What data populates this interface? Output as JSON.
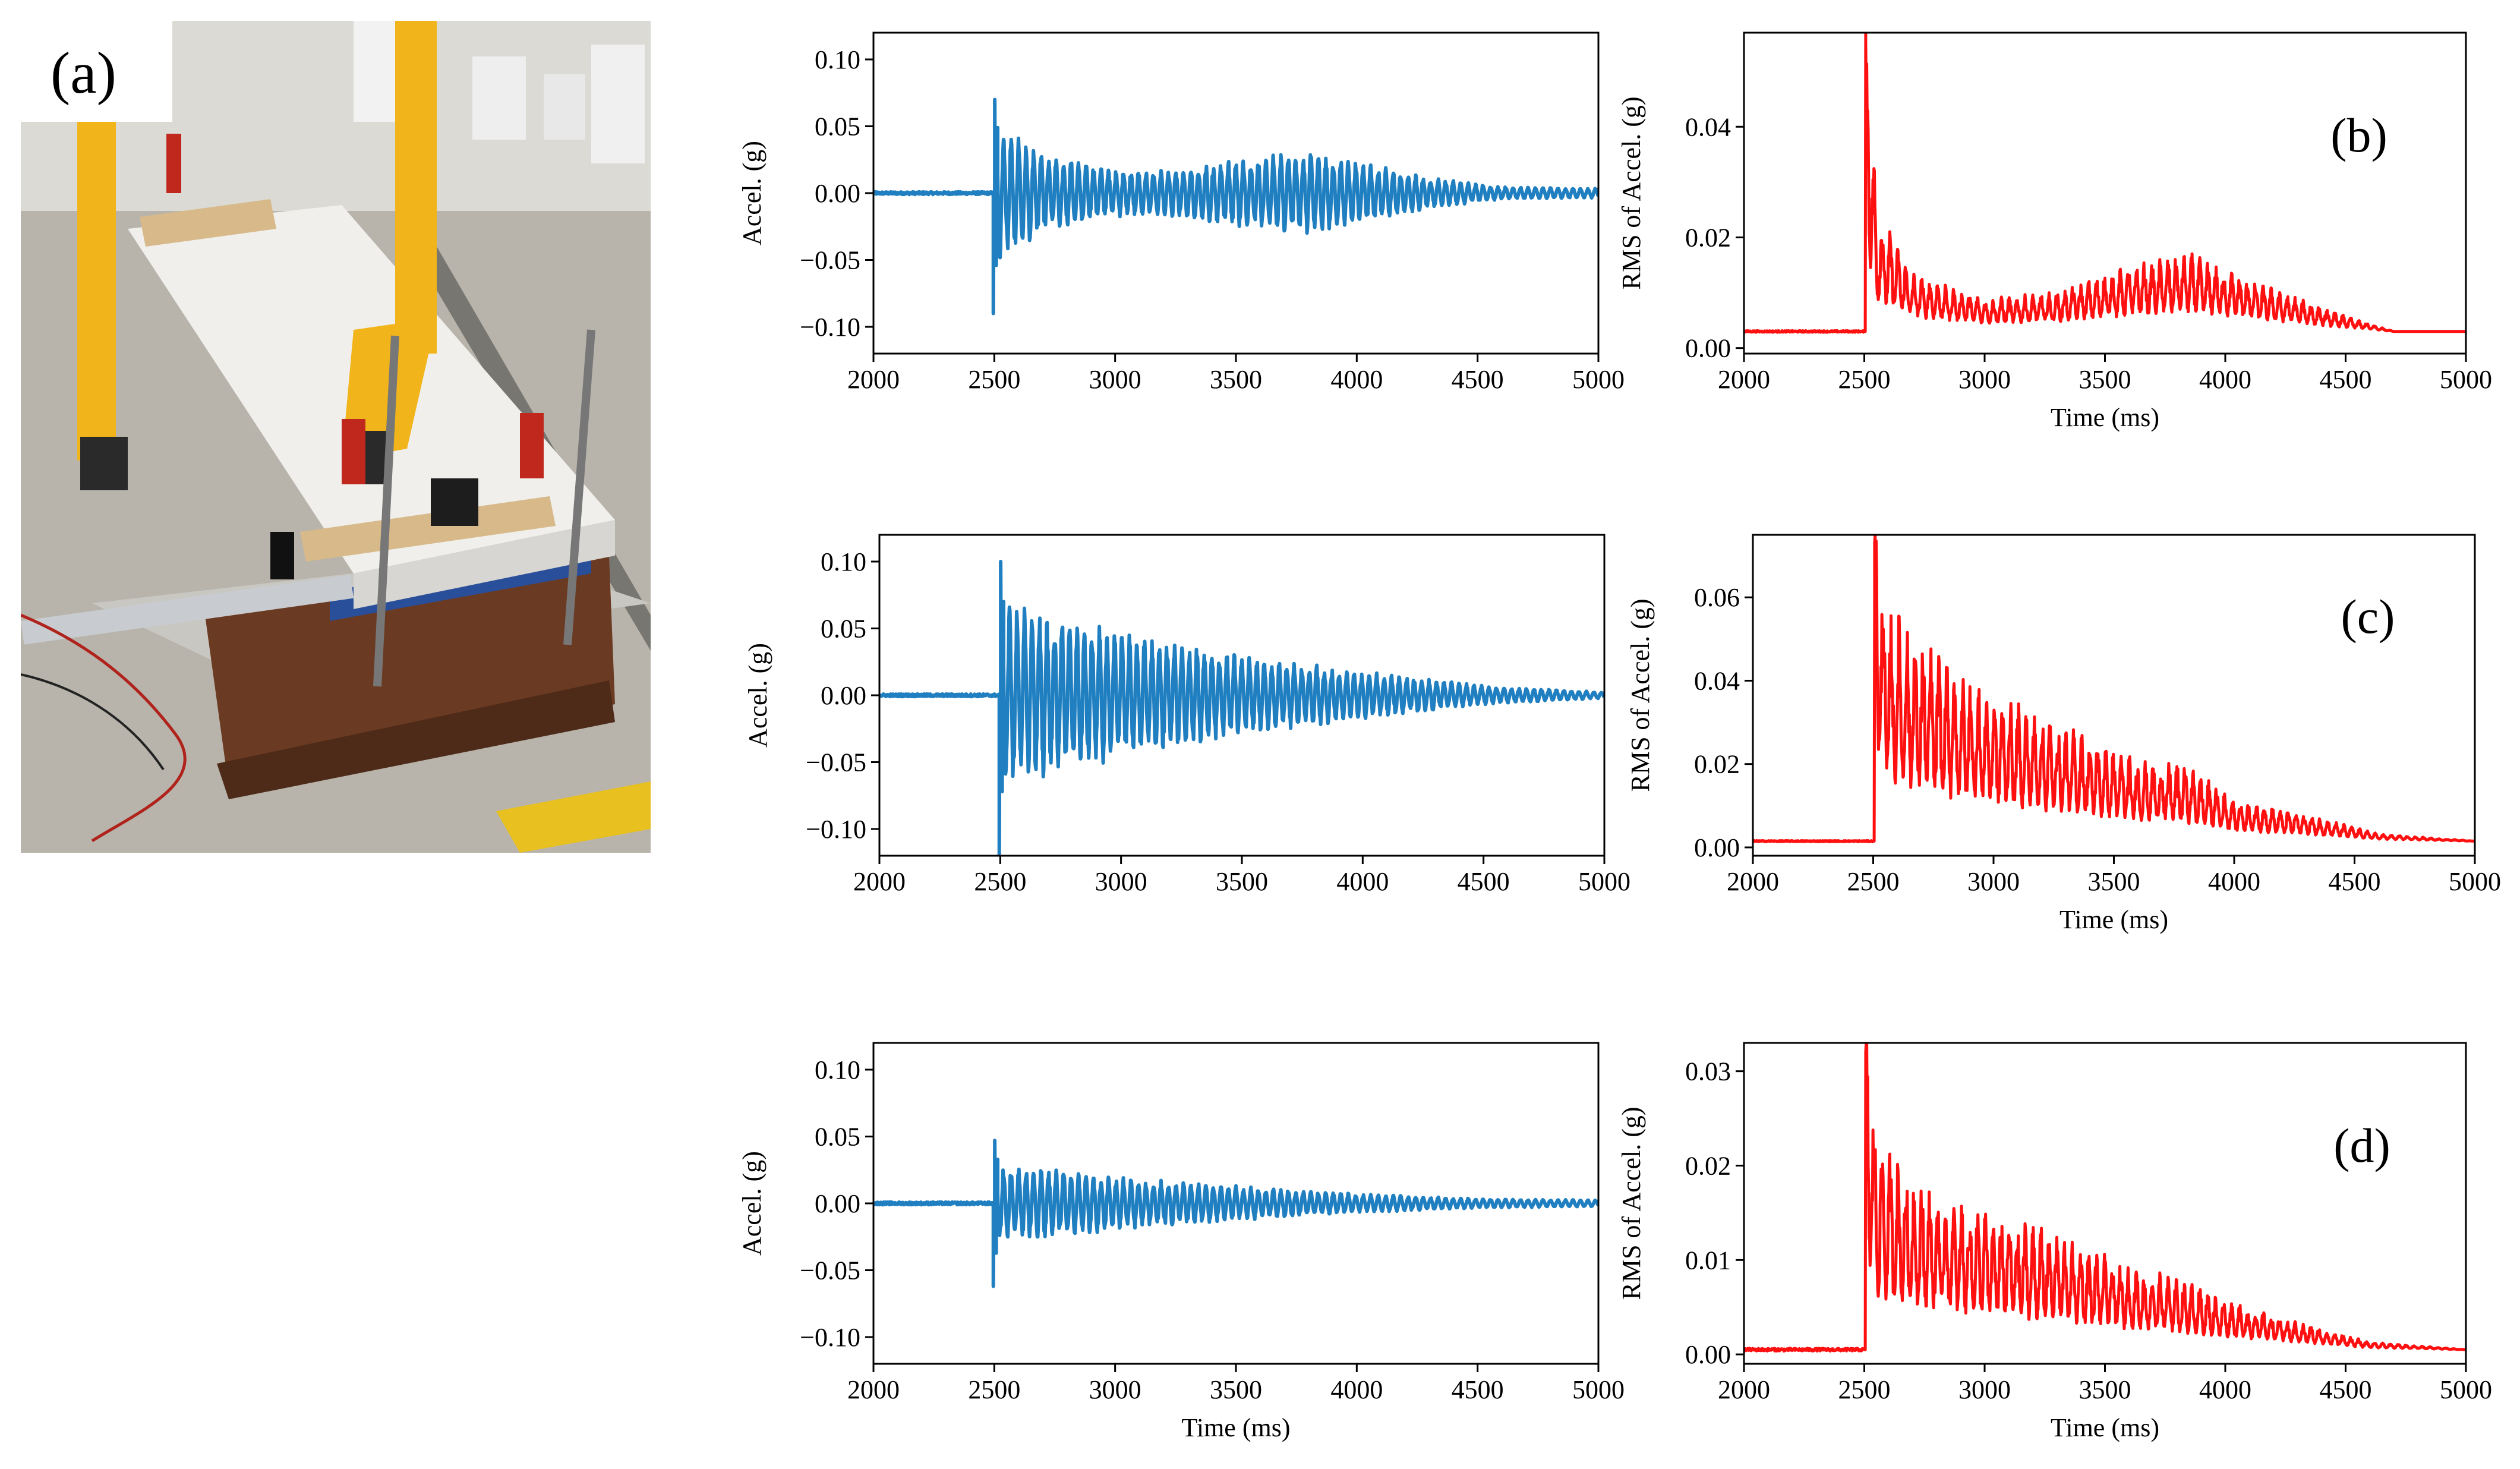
{
  "figure": {
    "panel_a_label": "(a)"
  },
  "colors": {
    "acceleration": "#1f7fc0",
    "rms": "#ff1010"
  },
  "chart_data": [
    {
      "type": "line",
      "panel": "b",
      "label": "(b)",
      "quantity": "acceleration",
      "xlabel": "",
      "ylabel": "Accel. (g)",
      "xlim": [
        2000,
        5000
      ],
      "ylim": [
        -0.12,
        0.12
      ],
      "xticks": [
        2000,
        2500,
        3000,
        3500,
        4000,
        4500,
        5000
      ],
      "yticks": [
        0.1,
        0.05,
        0.0,
        -0.05,
        -0.1
      ],
      "ytick_labels": [
        "0.10",
        "0.05",
        "0.00",
        "−0.05",
        "−0.10"
      ],
      "impact_time": 2500,
      "peak_max": 0.07,
      "peak_min": -0.09,
      "baseline": 0.0,
      "envelope": [
        [
          2510,
          0.045
        ],
        [
          2700,
          0.025
        ],
        [
          3000,
          0.015
        ],
        [
          3200,
          0.014
        ],
        [
          3500,
          0.022
        ],
        [
          3800,
          0.026
        ],
        [
          4000,
          0.02
        ],
        [
          4300,
          0.01
        ],
        [
          4600,
          0.004
        ],
        [
          5000,
          0.003
        ]
      ],
      "grid": false
    },
    {
      "type": "line",
      "panel": "b",
      "label": "(b)",
      "quantity": "rms",
      "xlabel": "Time (ms)",
      "ylabel": "RMS of Accel. (g)",
      "xlim": [
        2000,
        5000
      ],
      "ylim": [
        -0.001,
        0.057
      ],
      "xticks": [
        2000,
        2500,
        3000,
        3500,
        4000,
        4500,
        5000
      ],
      "yticks": [
        0.0,
        0.02,
        0.04
      ],
      "ytick_labels": [
        "0.00",
        "0.02",
        "0.04"
      ],
      "impact_time": 2500,
      "peak": 0.055,
      "baseline": 0.003,
      "envelope": [
        [
          2510,
          0.055
        ],
        [
          2550,
          0.022
        ],
        [
          2700,
          0.012
        ],
        [
          3000,
          0.008
        ],
        [
          3300,
          0.009
        ],
        [
          3600,
          0.013
        ],
        [
          3850,
          0.015
        ],
        [
          4100,
          0.011
        ],
        [
          4450,
          0.006
        ],
        [
          4700,
          0.003
        ],
        [
          5000,
          0.003
        ]
      ],
      "grid": false
    },
    {
      "type": "line",
      "panel": "c",
      "label": "(c)",
      "quantity": "acceleration",
      "xlabel": "",
      "ylabel": "Accel. (g)",
      "xlim": [
        2000,
        5000
      ],
      "ylim": [
        -0.12,
        0.12
      ],
      "xticks": [
        2000,
        2500,
        3000,
        3500,
        4000,
        4500,
        5000
      ],
      "yticks": [
        0.1,
        0.05,
        0.0,
        -0.05,
        -0.1
      ],
      "ytick_labels": [
        "0.10",
        "0.05",
        "0.00",
        "−0.05",
        "−0.10"
      ],
      "impact_time": 2500,
      "peak_max": 0.1,
      "peak_min": -0.12,
      "baseline": 0.0,
      "envelope": [
        [
          2510,
          0.06
        ],
        [
          2600,
          0.055
        ],
        [
          3000,
          0.04
        ],
        [
          3500,
          0.025
        ],
        [
          4000,
          0.015
        ],
        [
          4500,
          0.006
        ],
        [
          5000,
          0.002
        ]
      ],
      "grid": false
    },
    {
      "type": "line",
      "panel": "c",
      "label": "(c)",
      "quantity": "rms",
      "xlabel": "Time (ms)",
      "ylabel": "RMS of Accel. (g)",
      "xlim": [
        2000,
        5000
      ],
      "ylim": [
        -0.002,
        0.075
      ],
      "xticks": [
        2000,
        2500,
        3000,
        3500,
        4000,
        4500,
        5000
      ],
      "yticks": [
        0.0,
        0.02,
        0.04,
        0.06
      ],
      "ytick_labels": [
        "0.00",
        "0.02",
        "0.04",
        "0.06"
      ],
      "impact_time": 2500,
      "peak": 0.073,
      "baseline": 0.0015,
      "envelope": [
        [
          2510,
          0.073
        ],
        [
          2550,
          0.05
        ],
        [
          2800,
          0.038
        ],
        [
          3000,
          0.032
        ],
        [
          3300,
          0.025
        ],
        [
          3600,
          0.018
        ],
        [
          3800,
          0.017
        ],
        [
          4000,
          0.01
        ],
        [
          4300,
          0.007
        ],
        [
          4600,
          0.003
        ],
        [
          5000,
          0.0015
        ]
      ],
      "grid": false
    },
    {
      "type": "line",
      "panel": "d",
      "label": "(d)",
      "quantity": "acceleration",
      "xlabel": "Time (ms)",
      "ylabel": "Accel. (g)",
      "xlim": [
        2000,
        5000
      ],
      "ylim": [
        -0.12,
        0.12
      ],
      "xticks": [
        2000,
        2500,
        3000,
        3500,
        4000,
        4500,
        5000
      ],
      "yticks": [
        0.1,
        0.05,
        0.0,
        -0.05,
        -0.1
      ],
      "ytick_labels": [
        "0.10",
        "0.05",
        "0.00",
        "−0.05",
        "−0.10"
      ],
      "impact_time": 2500,
      "peak_max": 0.047,
      "peak_min": -0.062,
      "baseline": 0.0,
      "envelope": [
        [
          2510,
          0.025
        ],
        [
          2700,
          0.022
        ],
        [
          3000,
          0.017
        ],
        [
          3500,
          0.011
        ],
        [
          4000,
          0.006
        ],
        [
          4500,
          0.003
        ],
        [
          5000,
          0.002
        ]
      ],
      "grid": false
    },
    {
      "type": "line",
      "panel": "d",
      "label": "(d)",
      "quantity": "rms",
      "xlabel": "Time (ms)",
      "ylabel": "RMS of Accel. (g)",
      "xlim": [
        2000,
        5000
      ],
      "ylim": [
        -0.001,
        0.033
      ],
      "xticks": [
        2000,
        2500,
        3000,
        3500,
        4000,
        4500,
        5000
      ],
      "yticks": [
        0.0,
        0.01,
        0.02,
        0.03
      ],
      "ytick_labels": [
        "0.00",
        "0.01",
        "0.02",
        "0.03"
      ],
      "impact_time": 2500,
      "peak": 0.032,
      "baseline": 0.0005,
      "envelope": [
        [
          2510,
          0.032
        ],
        [
          2550,
          0.02
        ],
        [
          2700,
          0.016
        ],
        [
          3000,
          0.013
        ],
        [
          3300,
          0.011
        ],
        [
          3600,
          0.008
        ],
        [
          3800,
          0.007
        ],
        [
          4000,
          0.005
        ],
        [
          4300,
          0.003
        ],
        [
          4600,
          0.0012
        ],
        [
          5000,
          0.0005
        ]
      ],
      "grid": false
    }
  ]
}
